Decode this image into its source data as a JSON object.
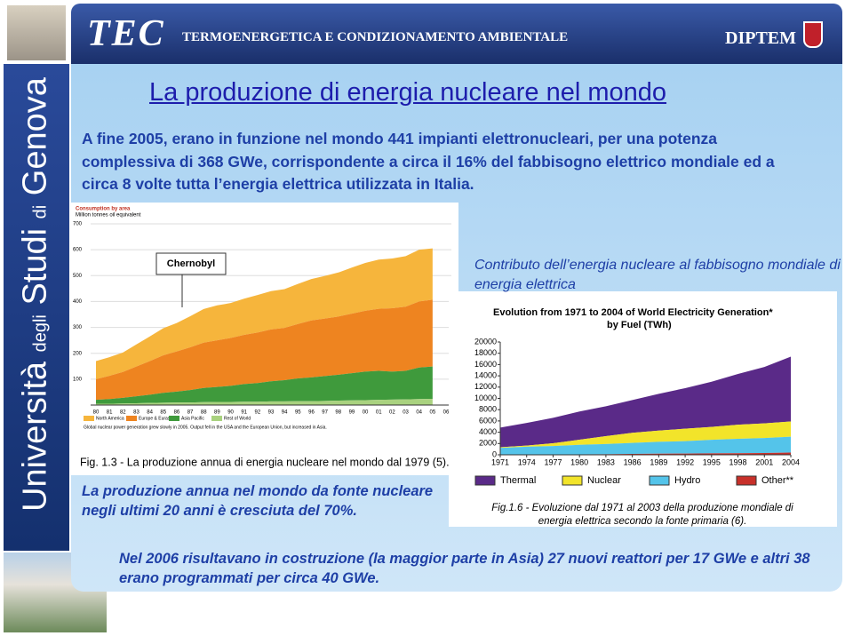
{
  "header": {
    "logo": "TEC",
    "title": "TERMOENERGETICA E CONDIZIONAMENTO AMBIENTALE",
    "dept": "DIPTEM"
  },
  "sidebar": [
    "Università",
    "degli",
    "Studi",
    "di",
    "Genova"
  ],
  "title": "La produzione di energia nucleare nel mondo",
  "intro": "A fine 2005, erano in funzione nel mondo 441 impianti elettronucleari, per una potenza complessiva di 368 GWe, corrispondente a circa il 16% del fabbisogno elettrico mondiale ed a circa 8 volte tutta l’energia elettrica utilizzata in Italia.",
  "label_fig2": "Contributo dell’energia nucleare al fabbisogno mondiale di energia elettrica",
  "label_fig1": "La produzione annua nel mondo da fonte nucleare negli ultimi 20 anni è cresciuta del 70%.",
  "footer_note": "Nel 2006 risultavano in costruzione (la maggior parte in Asia) 27 nuovi reattori per 17 GWe e altri 38 erano programmati per circa 40 GWe.",
  "chart_data": [
    {
      "type": "area",
      "stacked": true,
      "title": "Consumption by area",
      "ylabel": "Million tonnes oil equivalent",
      "annotation": "Chernobyl",
      "note": "Global nuclear power generation grew slowly in 2005. Output fell in the USA and the European Union, but increased in Asia.",
      "caption": "Fig. 1.3 - La produzione annua di energia nucleare nel mondo dal 1979 (5).",
      "categories": [
        "80",
        "81",
        "82",
        "83",
        "84",
        "85",
        "86",
        "87",
        "88",
        "89",
        "90",
        "91",
        "92",
        "93",
        "94",
        "95",
        "96",
        "97",
        "98",
        "99",
        "00",
        "01",
        "02",
        "03",
        "04",
        "05",
        "06"
      ],
      "series": [
        {
          "name": "North America",
          "color": "#f6b53c",
          "values": [
            70,
            72,
            75,
            85,
            95,
            105,
            110,
            120,
            130,
            135,
            135,
            140,
            145,
            148,
            150,
            155,
            160,
            165,
            170,
            178,
            185,
            190,
            192,
            195,
            200,
            198,
            null
          ]
        },
        {
          "name": "Europe & Eurasia",
          "color": "#ee8420",
          "values": [
            80,
            90,
            100,
            115,
            130,
            145,
            155,
            165,
            175,
            180,
            185,
            190,
            195,
            200,
            202,
            210,
            220,
            222,
            225,
            230,
            235,
            240,
            245,
            248,
            255,
            258,
            null
          ]
        },
        {
          "name": "Asia Pacific",
          "color": "#3f9a3c",
          "values": [
            15,
            18,
            22,
            27,
            32,
            38,
            42,
            48,
            55,
            58,
            62,
            68,
            72,
            78,
            82,
            88,
            92,
            96,
            100,
            105,
            110,
            112,
            108,
            110,
            122,
            125,
            null
          ]
        },
        {
          "name": "Rest of World",
          "color": "#a9d27f",
          "values": [
            5,
            5,
            6,
            7,
            8,
            9,
            10,
            10,
            11,
            12,
            12,
            13,
            13,
            14,
            14,
            15,
            15,
            16,
            17,
            18,
            19,
            20,
            21,
            22,
            23,
            24,
            null
          ]
        }
      ],
      "ylim": [
        0,
        700
      ],
      "yticks": [
        100,
        200,
        300,
        400,
        500,
        600,
        700
      ],
      "grid": true
    },
    {
      "type": "area",
      "stacked": true,
      "title": "Evolution from 1971 to 2004 of World Electricity Generation*",
      "subtitle": "by Fuel (TWh)",
      "caption": "Fig.1.6 - Evoluzione dal 1971 al 2003 della produzione mondiale di energia elettrica secondo la fonte primaria (6).",
      "x": [
        1971,
        1974,
        1977,
        1980,
        1983,
        1986,
        1989,
        1992,
        1995,
        1998,
        2001,
        2004
      ],
      "series": [
        {
          "name": "Thermal",
          "color": "#5a2a88",
          "values": [
            3500,
            4000,
            4500,
            5000,
            5300,
            5800,
            6500,
            7200,
            8000,
            9000,
            10000,
            11500
          ]
        },
        {
          "name": "Nuclear",
          "color": "#f2e42a",
          "values": [
            100,
            200,
            500,
            900,
            1400,
            1800,
            2000,
            2200,
            2300,
            2500,
            2600,
            2700
          ]
        },
        {
          "name": "Hydro",
          "color": "#54c4ea",
          "values": [
            1200,
            1400,
            1500,
            1700,
            1800,
            1950,
            2100,
            2200,
            2400,
            2550,
            2650,
            2800
          ]
        },
        {
          "name": "Other**",
          "color": "#c8302a",
          "values": [
            30,
            40,
            50,
            70,
            100,
            150,
            200,
            220,
            250,
            280,
            320,
            400
          ]
        }
      ],
      "xlim": [
        1971,
        2004
      ],
      "xticks": [
        1971,
        1974,
        1977,
        1980,
        1983,
        1986,
        1989,
        1992,
        1995,
        1998,
        2001,
        2004
      ],
      "ylim": [
        0,
        20000
      ],
      "yticks": [
        0,
        2000,
        4000,
        6000,
        8000,
        10000,
        12000,
        14000,
        16000,
        18000,
        20000
      ],
      "grid": false
    }
  ]
}
